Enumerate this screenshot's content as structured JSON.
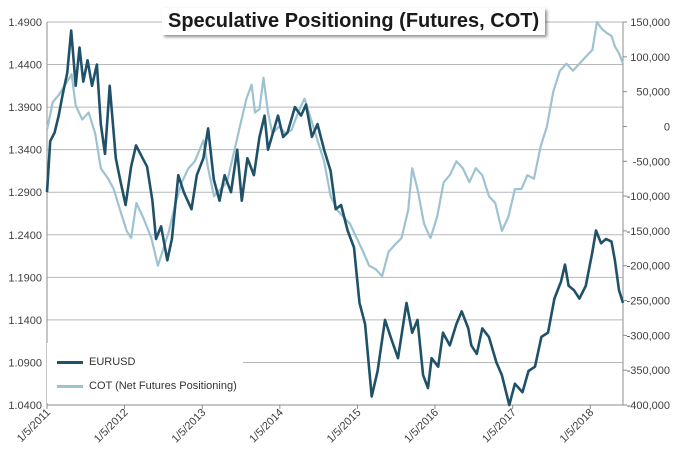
{
  "chart_data": {
    "type": "line",
    "title": "Speculative Positioning (Futures, COT)",
    "x_ticks": [
      "1/5/2011",
      "1/5/2012",
      "1/5/2013",
      "1/5/2014",
      "1/5/2015",
      "1/5/2016",
      "1/5/2017",
      "1/5/2018"
    ],
    "xlim": [
      "2011-01-05",
      "2018-06-08"
    ],
    "y_left": {
      "min": 1.04,
      "max": 1.49,
      "ticks": [
        "1.4900",
        "1.4400",
        "1.3900",
        "1.3400",
        "1.2900",
        "1.2400",
        "1.1900",
        "1.1400",
        "1.0900",
        "1.0400"
      ]
    },
    "y_right": {
      "min": -400000,
      "max": 150000,
      "ticks": [
        "150,000",
        "100,000",
        "50,000",
        "0",
        "-50,000",
        "-100,000",
        "-150,000",
        "-200,000",
        "-250,000",
        "-300,000",
        "-350,000",
        "-400,000"
      ]
    },
    "grid": "horizontal",
    "legend_position": "bottom-left",
    "series": [
      {
        "name": "EURUSD",
        "axis": "left",
        "color": "#1f5269",
        "points": [
          [
            "2011-01-05",
            1.29
          ],
          [
            "2011-01-20",
            1.35
          ],
          [
            "2011-02-10",
            1.36
          ],
          [
            "2011-03-01",
            1.38
          ],
          [
            "2011-03-20",
            1.405
          ],
          [
            "2011-04-10",
            1.43
          ],
          [
            "2011-04-29",
            1.48
          ],
          [
            "2011-05-20",
            1.415
          ],
          [
            "2011-06-07",
            1.46
          ],
          [
            "2011-06-25",
            1.42
          ],
          [
            "2011-07-15",
            1.445
          ],
          [
            "2011-08-05",
            1.415
          ],
          [
            "2011-08-28",
            1.44
          ],
          [
            "2011-09-15",
            1.37
          ],
          [
            "2011-10-05",
            1.335
          ],
          [
            "2011-10-27",
            1.415
          ],
          [
            "2011-11-25",
            1.33
          ],
          [
            "2011-12-15",
            1.305
          ],
          [
            "2012-01-10",
            1.275
          ],
          [
            "2012-02-05",
            1.32
          ],
          [
            "2012-02-28",
            1.345
          ],
          [
            "2012-03-30",
            1.33
          ],
          [
            "2012-04-20",
            1.32
          ],
          [
            "2012-05-15",
            1.28
          ],
          [
            "2012-06-01",
            1.235
          ],
          [
            "2012-06-25",
            1.25
          ],
          [
            "2012-07-24",
            1.21
          ],
          [
            "2012-08-15",
            1.235
          ],
          [
            "2012-09-14",
            1.31
          ],
          [
            "2012-10-10",
            1.29
          ],
          [
            "2012-11-15",
            1.27
          ],
          [
            "2012-12-10",
            1.31
          ],
          [
            "2013-01-10",
            1.33
          ],
          [
            "2013-02-01",
            1.365
          ],
          [
            "2013-02-28",
            1.305
          ],
          [
            "2013-03-27",
            1.28
          ],
          [
            "2013-04-20",
            1.31
          ],
          [
            "2013-05-20",
            1.29
          ],
          [
            "2013-06-18",
            1.34
          ],
          [
            "2013-07-10",
            1.28
          ],
          [
            "2013-08-05",
            1.33
          ],
          [
            "2013-09-05",
            1.31
          ],
          [
            "2013-10-01",
            1.355
          ],
          [
            "2013-10-25",
            1.38
          ],
          [
            "2013-11-10",
            1.34
          ],
          [
            "2013-12-27",
            1.38
          ],
          [
            "2014-01-20",
            1.355
          ],
          [
            "2014-02-10",
            1.36
          ],
          [
            "2014-03-17",
            1.39
          ],
          [
            "2014-04-15",
            1.38
          ],
          [
            "2014-05-08",
            1.393
          ],
          [
            "2014-06-05",
            1.355
          ],
          [
            "2014-07-01",
            1.37
          ],
          [
            "2014-08-01",
            1.34
          ],
          [
            "2014-09-01",
            1.315
          ],
          [
            "2014-09-25",
            1.27
          ],
          [
            "2014-10-20",
            1.275
          ],
          [
            "2014-11-20",
            1.245
          ],
          [
            "2014-12-20",
            1.225
          ],
          [
            "2015-01-15",
            1.16
          ],
          [
            "2015-02-10",
            1.135
          ],
          [
            "2015-03-13",
            1.05
          ],
          [
            "2015-04-10",
            1.08
          ],
          [
            "2015-05-15",
            1.14
          ],
          [
            "2015-06-10",
            1.12
          ],
          [
            "2015-07-15",
            1.095
          ],
          [
            "2015-08-24",
            1.16
          ],
          [
            "2015-09-20",
            1.125
          ],
          [
            "2015-10-15",
            1.14
          ],
          [
            "2015-11-10",
            1.075
          ],
          [
            "2015-12-03",
            1.06
          ],
          [
            "2015-12-20",
            1.095
          ],
          [
            "2016-01-20",
            1.085
          ],
          [
            "2016-02-12",
            1.125
          ],
          [
            "2016-03-15",
            1.11
          ],
          [
            "2016-04-15",
            1.135
          ],
          [
            "2016-05-10",
            1.15
          ],
          [
            "2016-06-10",
            1.13
          ],
          [
            "2016-06-24",
            1.11
          ],
          [
            "2016-07-20",
            1.1
          ],
          [
            "2016-08-15",
            1.13
          ],
          [
            "2016-09-15",
            1.12
          ],
          [
            "2016-10-20",
            1.09
          ],
          [
            "2016-11-15",
            1.075
          ],
          [
            "2016-12-20",
            1.04
          ],
          [
            "2017-01-15",
            1.065
          ],
          [
            "2017-02-20",
            1.055
          ],
          [
            "2017-03-20",
            1.08
          ],
          [
            "2017-04-20",
            1.085
          ],
          [
            "2017-05-20",
            1.12
          ],
          [
            "2017-06-20",
            1.125
          ],
          [
            "2017-07-20",
            1.165
          ],
          [
            "2017-08-20",
            1.185
          ],
          [
            "2017-09-08",
            1.205
          ],
          [
            "2017-09-25",
            1.18
          ],
          [
            "2017-10-20",
            1.175
          ],
          [
            "2017-11-15",
            1.165
          ],
          [
            "2017-12-15",
            1.18
          ],
          [
            "2018-01-15",
            1.22
          ],
          [
            "2018-02-01",
            1.245
          ],
          [
            "2018-02-25",
            1.23
          ],
          [
            "2018-03-20",
            1.235
          ],
          [
            "2018-04-15",
            1.232
          ],
          [
            "2018-05-01",
            1.21
          ],
          [
            "2018-05-20",
            1.175
          ],
          [
            "2018-06-08",
            1.16
          ]
        ]
      },
      {
        "name": "COT (Net Futures Positioning)",
        "axis": "right",
        "color": "#9dc3d2",
        "points": [
          [
            "2011-01-05",
            -5000
          ],
          [
            "2011-02-01",
            35000
          ],
          [
            "2011-03-01",
            45000
          ],
          [
            "2011-04-01",
            60000
          ],
          [
            "2011-05-01",
            75000
          ],
          [
            "2011-05-20",
            30000
          ],
          [
            "2011-06-20",
            10000
          ],
          [
            "2011-07-20",
            20000
          ],
          [
            "2011-08-20",
            -10000
          ],
          [
            "2011-09-15",
            -60000
          ],
          [
            "2011-10-20",
            -75000
          ],
          [
            "2011-11-15",
            -90000
          ],
          [
            "2011-12-15",
            -120000
          ],
          [
            "2012-01-15",
            -150000
          ],
          [
            "2012-02-05",
            -160000
          ],
          [
            "2012-03-01",
            -110000
          ],
          [
            "2012-04-01",
            -130000
          ],
          [
            "2012-05-10",
            -160000
          ],
          [
            "2012-06-10",
            -200000
          ],
          [
            "2012-07-01",
            -180000
          ],
          [
            "2012-08-01",
            -150000
          ],
          [
            "2012-09-01",
            -110000
          ],
          [
            "2012-10-01",
            -80000
          ],
          [
            "2012-11-01",
            -60000
          ],
          [
            "2012-12-01",
            -50000
          ],
          [
            "2013-01-10",
            -20000
          ],
          [
            "2013-02-01",
            -60000
          ],
          [
            "2013-03-01",
            -100000
          ],
          [
            "2013-04-01",
            -90000
          ],
          [
            "2013-05-01",
            -80000
          ],
          [
            "2013-06-01",
            -40000
          ],
          [
            "2013-07-01",
            0
          ],
          [
            "2013-08-01",
            40000
          ],
          [
            "2013-08-25",
            60000
          ],
          [
            "2013-09-10",
            20000
          ],
          [
            "2013-10-01",
            25000
          ],
          [
            "2013-10-20",
            70000
          ],
          [
            "2013-11-10",
            20000
          ],
          [
            "2013-12-01",
            -10000
          ],
          [
            "2014-01-01",
            0
          ],
          [
            "2014-02-01",
            -10000
          ],
          [
            "2014-03-01",
            -5000
          ],
          [
            "2014-04-01",
            20000
          ],
          [
            "2014-05-01",
            40000
          ],
          [
            "2014-06-01",
            10000
          ],
          [
            "2014-07-01",
            -20000
          ],
          [
            "2014-08-01",
            -50000
          ],
          [
            "2014-09-01",
            -100000
          ],
          [
            "2014-10-01",
            -120000
          ],
          [
            "2014-11-01",
            -130000
          ],
          [
            "2014-12-01",
            -140000
          ],
          [
            "2015-01-01",
            -160000
          ],
          [
            "2015-02-01",
            -180000
          ],
          [
            "2015-03-01",
            -200000
          ],
          [
            "2015-04-01",
            -205000
          ],
          [
            "2015-05-01",
            -215000
          ],
          [
            "2015-06-01",
            -180000
          ],
          [
            "2015-07-01",
            -170000
          ],
          [
            "2015-08-01",
            -160000
          ],
          [
            "2015-09-01",
            -120000
          ],
          [
            "2015-09-20",
            -60000
          ],
          [
            "2015-10-15",
            -90000
          ],
          [
            "2015-11-15",
            -140000
          ],
          [
            "2015-12-15",
            -160000
          ],
          [
            "2016-01-15",
            -130000
          ],
          [
            "2016-02-15",
            -80000
          ],
          [
            "2016-03-15",
            -70000
          ],
          [
            "2016-04-15",
            -50000
          ],
          [
            "2016-05-15",
            -60000
          ],
          [
            "2016-06-15",
            -80000
          ],
          [
            "2016-07-15",
            -60000
          ],
          [
            "2016-08-15",
            -70000
          ],
          [
            "2016-09-15",
            -100000
          ],
          [
            "2016-10-15",
            -110000
          ],
          [
            "2016-11-15",
            -150000
          ],
          [
            "2016-12-15",
            -130000
          ],
          [
            "2017-01-15",
            -90000
          ],
          [
            "2017-02-15",
            -90000
          ],
          [
            "2017-03-15",
            -70000
          ],
          [
            "2017-04-15",
            -75000
          ],
          [
            "2017-05-15",
            -30000
          ],
          [
            "2017-06-15",
            0
          ],
          [
            "2017-07-15",
            50000
          ],
          [
            "2017-08-15",
            80000
          ],
          [
            "2017-09-15",
            90000
          ],
          [
            "2017-10-15",
            80000
          ],
          [
            "2017-11-15",
            90000
          ],
          [
            "2017-12-15",
            100000
          ],
          [
            "2018-01-15",
            110000
          ],
          [
            "2018-02-05",
            150000
          ],
          [
            "2018-03-01",
            140000
          ],
          [
            "2018-03-20",
            135000
          ],
          [
            "2018-04-15",
            130000
          ],
          [
            "2018-05-01",
            115000
          ],
          [
            "2018-05-20",
            105000
          ],
          [
            "2018-06-08",
            90000
          ]
        ]
      }
    ]
  }
}
